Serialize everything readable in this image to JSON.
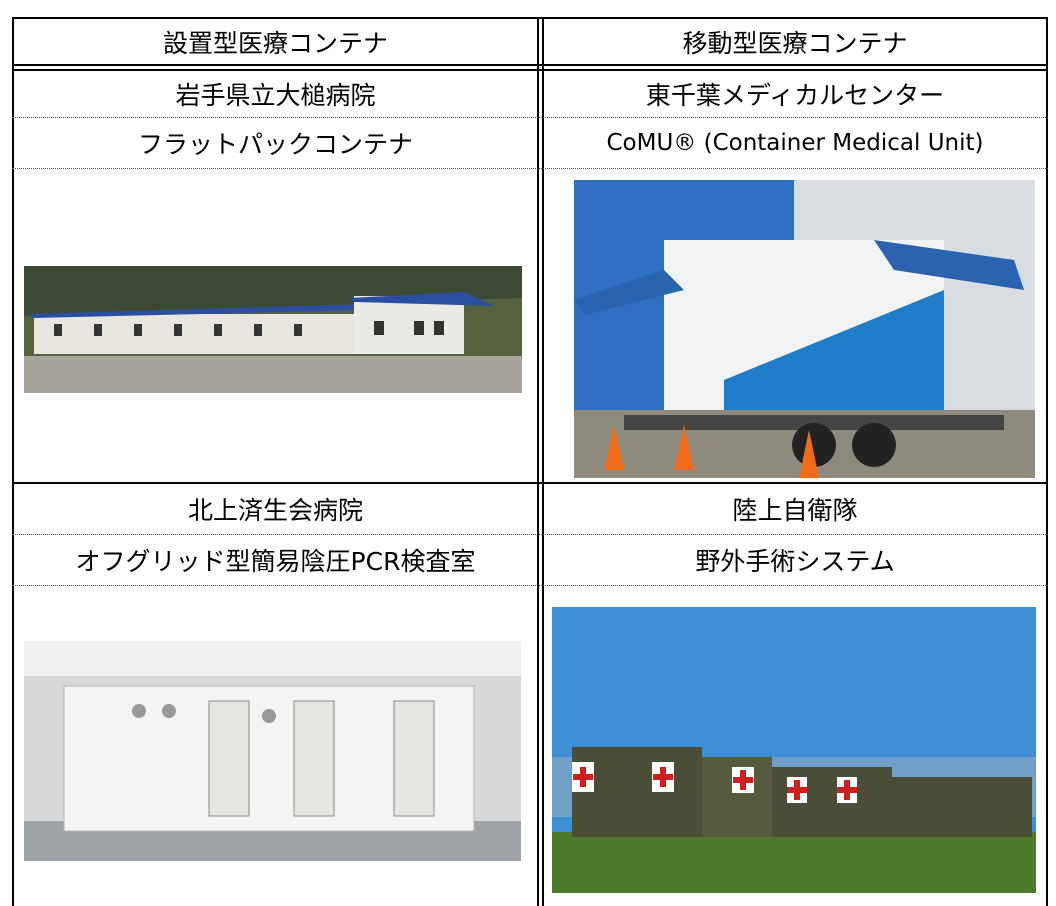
{
  "table": {
    "header": [
      "設置型医療コンテナ",
      "移動型医療コンテナ"
    ],
    "rows": [
      [
        "岩手県立大槌病院",
        "東千葉メディカルセンター"
      ],
      [
        "フラットパックコンテナ",
        "CoMU® (Container Medical Unit)"
      ],
      [
        "北上済生会病院",
        "陸上自衛隊"
      ],
      [
        "オフグリッド型簡易陰圧PCR検査室",
        "野外手術システム"
      ]
    ]
  }
}
